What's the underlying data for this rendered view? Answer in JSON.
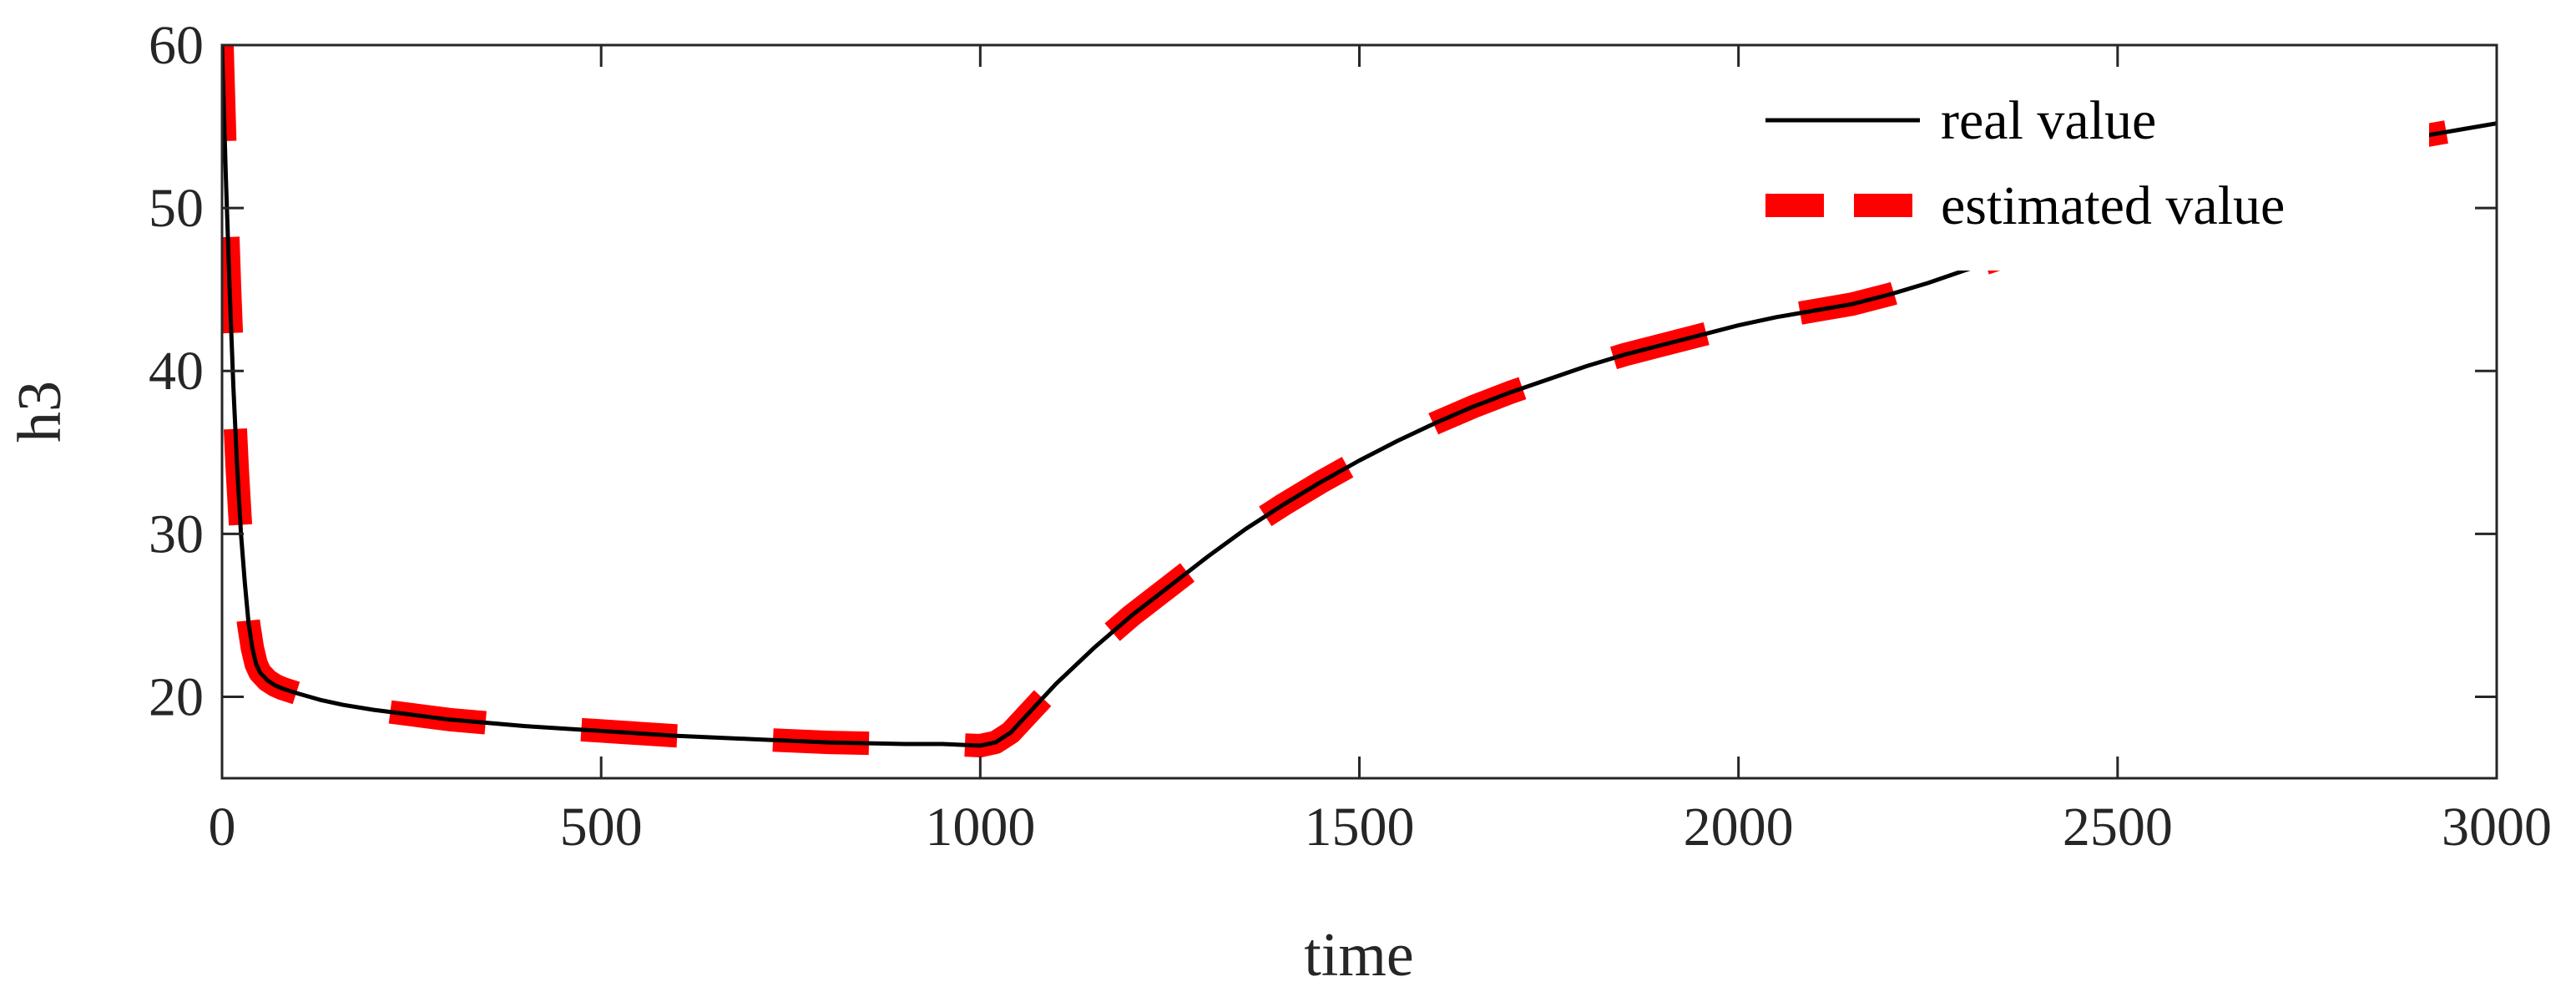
{
  "chart_data": {
    "type": "line",
    "title": "",
    "xlabel": "time",
    "ylabel": "h3",
    "xlim": [
      0,
      3000
    ],
    "ylim": [
      15,
      60
    ],
    "xticks": [
      0,
      500,
      1000,
      1500,
      2000,
      2500,
      3000
    ],
    "yticks": [
      20,
      30,
      40,
      50,
      60
    ],
    "grid": false,
    "legend_position": "top-right",
    "colors": {
      "real": "#000000",
      "estimated": "#ff0000"
    },
    "series": [
      {
        "name": "real value",
        "style": "solid",
        "x": [
          0,
          5,
          10,
          15,
          20,
          25,
          30,
          35,
          40,
          45,
          50,
          60,
          70,
          80,
          100,
          130,
          160,
          200,
          250,
          300,
          400,
          500,
          600,
          700,
          800,
          900,
          950,
          1000,
          1020,
          1040,
          1060,
          1080,
          1100,
          1150,
          1200,
          1250,
          1300,
          1350,
          1400,
          1450,
          1500,
          1550,
          1600,
          1650,
          1700,
          1750,
          1800,
          1850,
          1900,
          1950,
          2000,
          2050,
          2100,
          2150,
          2200,
          2250,
          2300,
          2350,
          2400,
          2450,
          2500,
          2550,
          2600,
          2650,
          2700,
          2750,
          2800,
          2850,
          2900,
          2950,
          3000
        ],
        "y": [
          60,
          52,
          45,
          39,
          34,
          30,
          27,
          24.5,
          23,
          22,
          21.5,
          21,
          20.7,
          20.5,
          20.2,
          19.8,
          19.5,
          19.2,
          18.9,
          18.6,
          18.2,
          17.9,
          17.6,
          17.4,
          17.2,
          17.1,
          17.1,
          17.0,
          17.2,
          17.8,
          18.8,
          19.8,
          20.8,
          23.0,
          25.0,
          26.8,
          28.6,
          30.3,
          31.8,
          33.2,
          34.5,
          35.7,
          36.8,
          37.8,
          38.7,
          39.5,
          40.3,
          41.0,
          41.6,
          42.2,
          42.8,
          43.3,
          43.7,
          44.1,
          44.7,
          45.4,
          46.2,
          47.0,
          47.8,
          48.6,
          49.4,
          50.1,
          50.8,
          51.5,
          52.2,
          52.8,
          53.4,
          53.9,
          54.4,
          54.8,
          55.2
        ]
      },
      {
        "name": "estimated value",
        "style": "dashed",
        "x": [
          0,
          5,
          10,
          15,
          20,
          25,
          30,
          35,
          40,
          45,
          50,
          60,
          70,
          80,
          100,
          130,
          160,
          200,
          250,
          300,
          400,
          500,
          600,
          700,
          800,
          900,
          950,
          1000,
          1020,
          1040,
          1060,
          1080,
          1100,
          1150,
          1200,
          1250,
          1300,
          1350,
          1400,
          1450,
          1500,
          1550,
          1600,
          1650,
          1700,
          1750,
          1800,
          1850,
          1900,
          1950,
          2000,
          2050,
          2100,
          2150,
          2200,
          2250,
          2300,
          2350,
          2400,
          2450,
          2500,
          2550,
          2600,
          2650,
          2700,
          2750,
          2800,
          2850,
          2900,
          2950,
          3000
        ],
        "y": [
          60,
          52,
          45,
          39,
          34,
          30,
          27,
          24.5,
          23,
          22,
          21.5,
          21,
          20.7,
          20.5,
          20.2,
          19.8,
          19.5,
          19.2,
          18.9,
          18.6,
          18.2,
          17.9,
          17.6,
          17.4,
          17.2,
          17.1,
          17.1,
          17.0,
          17.2,
          17.8,
          18.8,
          19.8,
          20.8,
          23.0,
          25.0,
          26.8,
          28.6,
          30.3,
          31.8,
          33.2,
          34.5,
          35.7,
          36.8,
          37.8,
          38.7,
          39.5,
          40.3,
          41.0,
          41.6,
          42.2,
          42.8,
          43.3,
          43.7,
          44.1,
          44.7,
          45.4,
          46.2,
          47.0,
          47.8,
          48.6,
          49.4,
          50.1,
          50.8,
          51.5,
          52.2,
          52.8,
          53.4,
          53.9,
          54.4,
          54.8,
          55.2
        ]
      }
    ]
  }
}
